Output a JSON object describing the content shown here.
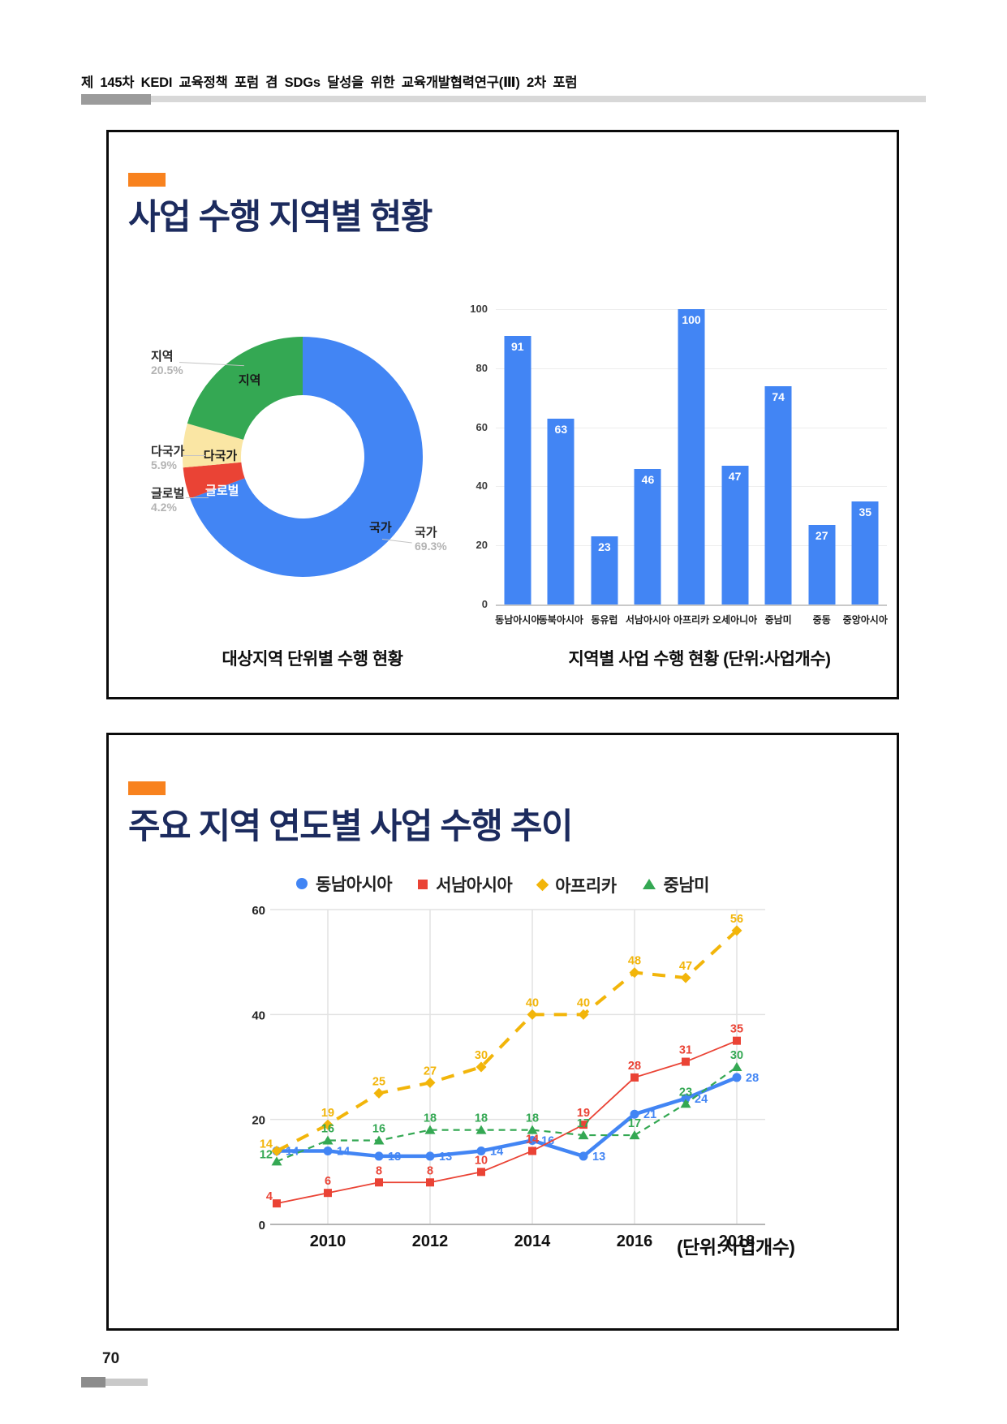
{
  "header": {
    "title": "제 145차 KEDI 교육정책 포럼 겸 SDGs 달성을 위한 교육개발협력연구(Ⅲ) 2차 포럼"
  },
  "page_number": "70",
  "slide1": {
    "title": "사업 수행 지역별 현황",
    "caption_left": "대상지역 단위별 수행 현황",
    "caption_right": "지역별 사업 수행 현황 (단위:사업개수)"
  },
  "slide2": {
    "title": "주요 지역 연도별 사업 수행 추이",
    "unit_note": "(단위:사업개수)"
  },
  "accent_color": "#F8821E",
  "title_color": "#1c2b5e",
  "chart_data": [
    {
      "type": "pie",
      "variant": "donut",
      "title": "대상지역 단위별 수행 현황",
      "labels": [
        "국가",
        "글로벌",
        "다국가",
        "지역"
      ],
      "values": [
        69.3,
        4.2,
        5.9,
        20.5
      ],
      "unit": "%",
      "colors": {
        "국가": "#4285F4",
        "글로벌": "#EA4335",
        "다국가": "#FAE6A4",
        "지역": "#34A853"
      }
    },
    {
      "type": "bar",
      "title": "지역별 사업 수행 현황 (단위:사업개수)",
      "categories": [
        "동남아시아",
        "동북아시아",
        "동유럽",
        "서남아시아",
        "아프리카",
        "오세아니아",
        "중남미",
        "중동",
        "중앙아시아"
      ],
      "values": [
        91,
        63,
        23,
        46,
        100,
        47,
        74,
        27,
        35
      ],
      "xlabel": "",
      "ylabel": "",
      "ylim": [
        0,
        100
      ],
      "yticks": [
        0,
        20,
        40,
        60,
        80,
        100
      ],
      "bar_color": "#4285F4",
      "grid": true
    },
    {
      "type": "line",
      "title": "주요 지역 연도별 사업 수행 추이",
      "x": [
        2009,
        2010,
        2011,
        2012,
        2013,
        2014,
        2015,
        2016,
        2017,
        2018
      ],
      "xticks": [
        2010,
        2012,
        2014,
        2016,
        2018
      ],
      "ylim": [
        0,
        60
      ],
      "yticks": [
        0,
        20,
        40,
        60
      ],
      "grid": true,
      "legend_position": "top",
      "unit_note": "(단위:사업개수)",
      "series": [
        {
          "name": "동남아시아",
          "color": "#4285F4",
          "marker": "circle",
          "line": "solid",
          "values": [
            14,
            14,
            13,
            13,
            14,
            16,
            13,
            21,
            24,
            28
          ]
        },
        {
          "name": "서남아시아",
          "color": "#EA4335",
          "marker": "square",
          "line": "solid",
          "values": [
            4,
            6,
            8,
            8,
            10,
            14,
            19,
            28,
            31,
            35
          ]
        },
        {
          "name": "아프리카",
          "color": "#F2B50A",
          "marker": "diamond",
          "line": "dashed",
          "values": [
            14,
            19,
            25,
            27,
            30,
            40,
            40,
            48,
            47,
            56
          ]
        },
        {
          "name": "중남미",
          "color": "#34A853",
          "marker": "triangle",
          "line": "dashed",
          "values": [
            12,
            16,
            16,
            18,
            18,
            18,
            17,
            17,
            23,
            30
          ]
        }
      ]
    }
  ]
}
